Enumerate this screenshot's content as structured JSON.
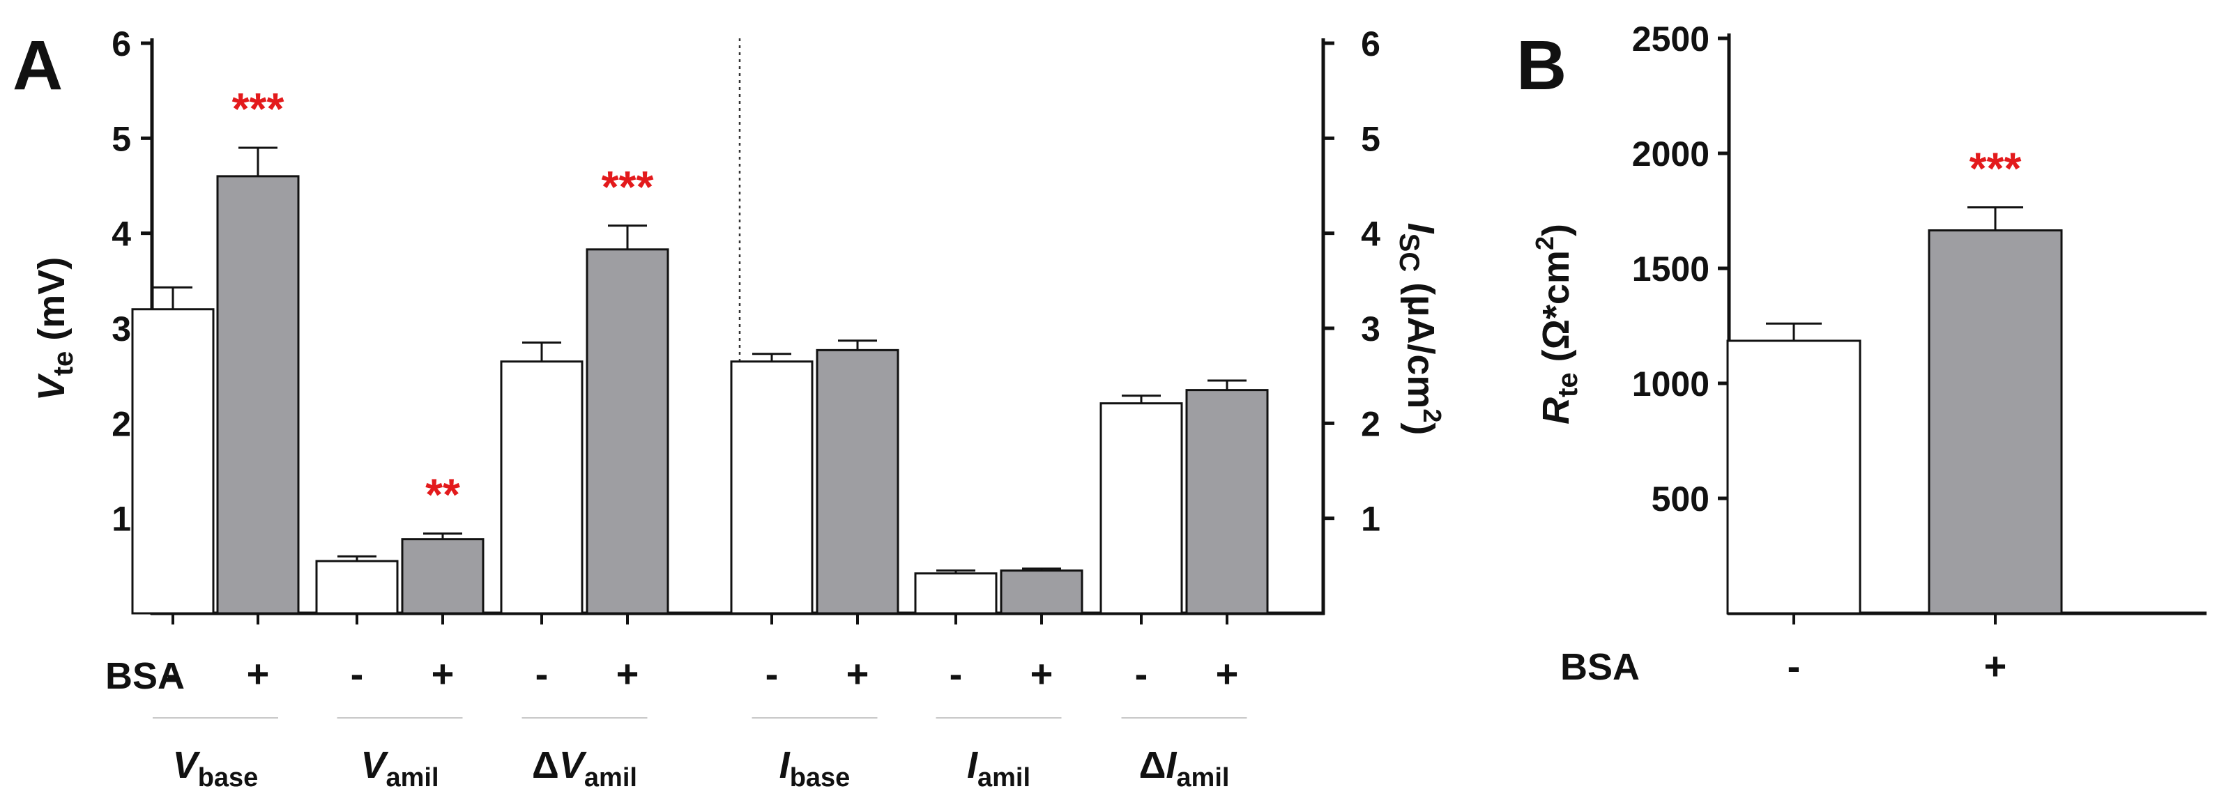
{
  "figure": {
    "panel_a": "A",
    "panel_b": "B",
    "bsa_label": "BSA"
  },
  "colors": {
    "control": "#ffffff",
    "bsa": "#9e9ea2",
    "stroke": "#111111",
    "significance": "#e31a1c"
  },
  "chart_data": [
    {
      "type": "bar",
      "panel": "A (left axis)",
      "ylabel": {
        "main": "V",
        "sub": "te",
        "rest": " (mV)"
      },
      "ylim": [
        0,
        6
      ],
      "yticks": [
        "1",
        "2",
        "3",
        "4",
        "5",
        "6"
      ],
      "groups": [
        {
          "name": "V",
          "sub": "base",
          "prefix": ""
        },
        {
          "name": "V",
          "sub": "amil",
          "prefix": ""
        },
        {
          "name": "V",
          "sub": "amil",
          "prefix": "Δ"
        }
      ],
      "conditions": [
        "-",
        "+"
      ],
      "series": [
        {
          "values": [
            3.2,
            0.55,
            2.65
          ],
          "errors": [
            0.23,
            0.05,
            0.2
          ]
        },
        {
          "values": [
            4.6,
            0.78,
            3.83
          ],
          "errors": [
            0.3,
            0.06,
            0.25
          ]
        }
      ],
      "significance": [
        "***",
        "**",
        "***"
      ],
      "grid": false
    },
    {
      "type": "bar",
      "panel": "A (right axis)",
      "ylabel": {
        "main": "I",
        "sub": "SC",
        "rest": " (µA/cm",
        "sup": "2",
        "close": ")"
      },
      "ylim": [
        0,
        6
      ],
      "yticks": [
        "1",
        "2",
        "3",
        "4",
        "5",
        "6"
      ],
      "groups": [
        {
          "name": "I",
          "sub": "base",
          "prefix": ""
        },
        {
          "name": "I",
          "sub": "amil",
          "prefix": ""
        },
        {
          "name": "I",
          "sub": "amil",
          "prefix": "Δ"
        }
      ],
      "conditions": [
        "-",
        "+"
      ],
      "series": [
        {
          "values": [
            2.65,
            0.42,
            2.21
          ],
          "errors": [
            0.08,
            0.03,
            0.08
          ]
        },
        {
          "values": [
            2.77,
            0.45,
            2.35
          ],
          "errors": [
            0.1,
            0.02,
            0.1
          ]
        }
      ],
      "grid": false
    },
    {
      "type": "bar",
      "panel": "B",
      "ylabel": {
        "main": "R",
        "sub": "te",
        "rest": " (Ω*cm",
        "sup": "2",
        "close": ")"
      },
      "ylim": [
        0,
        2500
      ],
      "yticks": [
        "500",
        "1000",
        "1500",
        "2000",
        "2500"
      ],
      "conditions": [
        "-",
        "+"
      ],
      "values": [
        1185,
        1665
      ],
      "errors": [
        75,
        100
      ],
      "significance": [
        "",
        "***"
      ],
      "grid": false
    }
  ]
}
